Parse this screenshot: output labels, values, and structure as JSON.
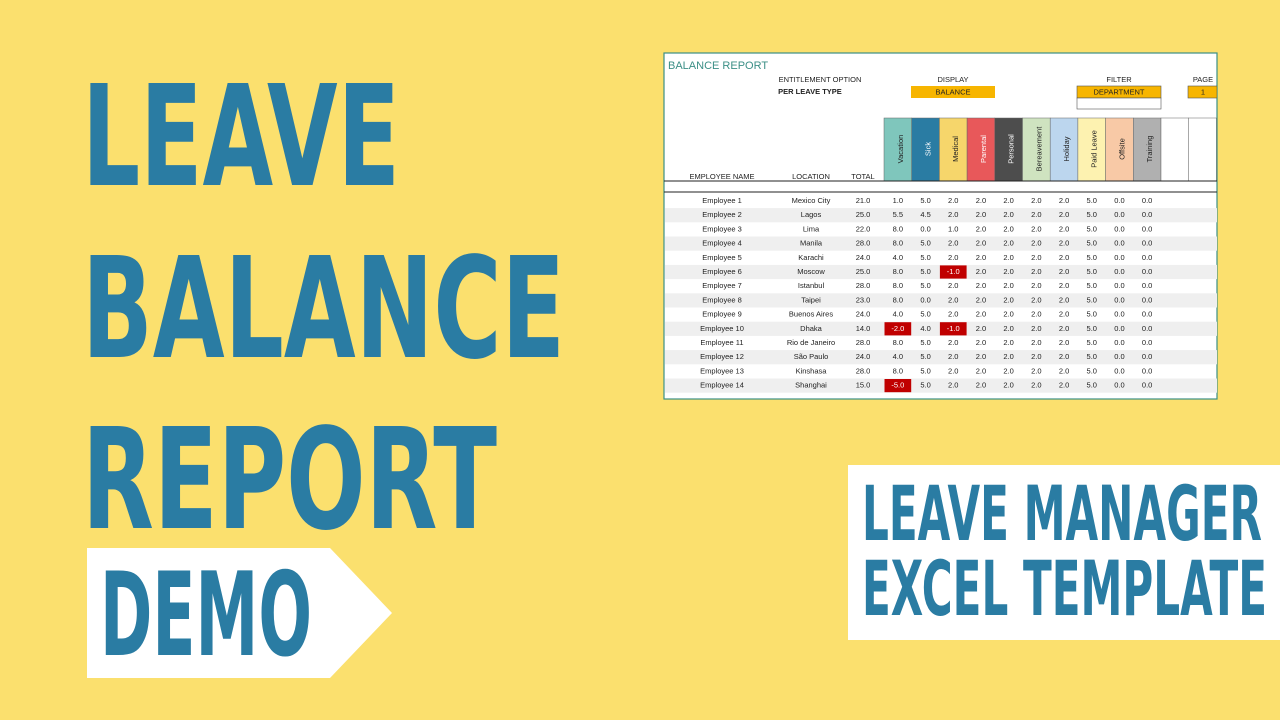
{
  "headline": {
    "lines": [
      "LEAVE",
      "BALANCE",
      "REPORT"
    ],
    "tag": "DEMO"
  },
  "product": {
    "lines": [
      "LEAVE MANAGER",
      "EXCEL TEMPLATE"
    ]
  },
  "sheet": {
    "title": "BALANCE REPORT",
    "entitlement_label": "ENTITLEMENT OPTION",
    "entitlement_value": "PER LEAVE TYPE",
    "display_label": "DISPLAY",
    "display_value": "BALANCE",
    "filter_label": "FILTER",
    "filter_value": "DEPARTMENT",
    "page_label": "PAGE",
    "page_value": "1",
    "columns": [
      "EMPLOYEE NAME",
      "LOCATION",
      "TOTAL"
    ],
    "leave_types": [
      {
        "name": "Vacation",
        "color": "#7fc6bc"
      },
      {
        "name": "Sick",
        "color": "#2a7ca3"
      },
      {
        "name": "Medical",
        "color": "#f6d66b"
      },
      {
        "name": "Parental",
        "color": "#e8585a"
      },
      {
        "name": "Personal",
        "color": "#4d4d4d"
      },
      {
        "name": "Bereavement",
        "color": "#cfe3c0"
      },
      {
        "name": "Holiday",
        "color": "#bcd6ee"
      },
      {
        "name": "Paid Leave",
        "color": "#fdf2b0"
      },
      {
        "name": "Offsite",
        "color": "#f8c9a6"
      },
      {
        "name": "Training",
        "color": "#b0b0b0"
      }
    ],
    "rows": [
      [
        "Employee 1",
        "Mexico City",
        "21.0",
        "1.0",
        "5.0",
        "2.0",
        "2.0",
        "2.0",
        "2.0",
        "2.0",
        "5.0",
        "0.0",
        "0.0"
      ],
      [
        "Employee 2",
        "Lagos",
        "25.0",
        "5.5",
        "4.5",
        "2.0",
        "2.0",
        "2.0",
        "2.0",
        "2.0",
        "5.0",
        "0.0",
        "0.0"
      ],
      [
        "Employee 3",
        "Lima",
        "22.0",
        "8.0",
        "0.0",
        "1.0",
        "2.0",
        "2.0",
        "2.0",
        "2.0",
        "5.0",
        "0.0",
        "0.0"
      ],
      [
        "Employee 4",
        "Manila",
        "28.0",
        "8.0",
        "5.0",
        "2.0",
        "2.0",
        "2.0",
        "2.0",
        "2.0",
        "5.0",
        "0.0",
        "0.0"
      ],
      [
        "Employee 5",
        "Karachi",
        "24.0",
        "4.0",
        "5.0",
        "2.0",
        "2.0",
        "2.0",
        "2.0",
        "2.0",
        "5.0",
        "0.0",
        "0.0"
      ],
      [
        "Employee 6",
        "Moscow",
        "25.0",
        "8.0",
        "5.0",
        "-1.0",
        "2.0",
        "2.0",
        "2.0",
        "2.0",
        "5.0",
        "0.0",
        "0.0"
      ],
      [
        "Employee 7",
        "Istanbul",
        "28.0",
        "8.0",
        "5.0",
        "2.0",
        "2.0",
        "2.0",
        "2.0",
        "2.0",
        "5.0",
        "0.0",
        "0.0"
      ],
      [
        "Employee 8",
        "Taipei",
        "23.0",
        "8.0",
        "0.0",
        "2.0",
        "2.0",
        "2.0",
        "2.0",
        "2.0",
        "5.0",
        "0.0",
        "0.0"
      ],
      [
        "Employee 9",
        "Buenos Aires",
        "24.0",
        "4.0",
        "5.0",
        "2.0",
        "2.0",
        "2.0",
        "2.0",
        "2.0",
        "5.0",
        "0.0",
        "0.0"
      ],
      [
        "Employee 10",
        "Dhaka",
        "14.0",
        "-2.0",
        "4.0",
        "-1.0",
        "2.0",
        "2.0",
        "2.0",
        "2.0",
        "5.0",
        "0.0",
        "0.0"
      ],
      [
        "Employee 11",
        "Rio de Janeiro",
        "28.0",
        "8.0",
        "5.0",
        "2.0",
        "2.0",
        "2.0",
        "2.0",
        "2.0",
        "5.0",
        "0.0",
        "0.0"
      ],
      [
        "Employee 12",
        "São Paulo",
        "24.0",
        "4.0",
        "5.0",
        "2.0",
        "2.0",
        "2.0",
        "2.0",
        "2.0",
        "5.0",
        "0.0",
        "0.0"
      ],
      [
        "Employee 13",
        "Kinshasa",
        "28.0",
        "8.0",
        "5.0",
        "2.0",
        "2.0",
        "2.0",
        "2.0",
        "2.0",
        "5.0",
        "0.0",
        "0.0"
      ],
      [
        "Employee 14",
        "Shanghai",
        "15.0",
        "-5.0",
        "5.0",
        "2.0",
        "2.0",
        "2.0",
        "2.0",
        "2.0",
        "5.0",
        "0.0",
        "0.0"
      ]
    ]
  }
}
